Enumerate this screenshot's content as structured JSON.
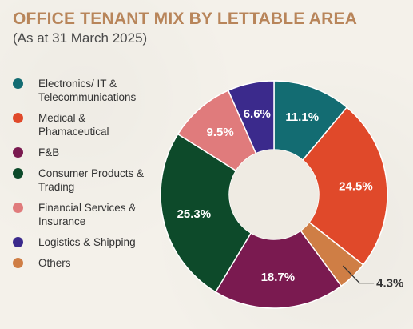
{
  "chart_data": {
    "type": "pie",
    "title": "OFFICE TENANT MIX BY LETTABLE AREA",
    "subtitle": "(As at 31 March 2025)",
    "categories": [
      "Electronics/ IT & Telecommunications",
      "Medical & Phamaceutical",
      "F&B",
      "Consumer Products & Trading",
      "Financial Services & Insurance",
      "Logistics & Shipping",
      "Others"
    ],
    "legend_labels": [
      [
        "Electronics/ IT &",
        "Telecommunications"
      ],
      [
        "Medical &",
        "Phamaceutical"
      ],
      [
        "F&B"
      ],
      [
        "Consumer Products &",
        "Trading"
      ],
      [
        "Financial Services &",
        "Insurance"
      ],
      [
        "Logistics & Shipping"
      ],
      [
        "Others"
      ]
    ],
    "slice_order": [
      "Electronics/ IT & Telecommunications",
      "Medical & Phamaceutical",
      "Others",
      "F&B",
      "Consumer Products & Trading",
      "Financial Services & Insurance",
      "Logistics & Shipping"
    ],
    "slice_values": [
      11.1,
      24.5,
      4.3,
      18.7,
      25.3,
      9.5,
      6.6
    ],
    "slice_labels": [
      "11.1%",
      "24.5%",
      "4.3%",
      "18.7%",
      "25.3%",
      "9.5%",
      "6.6%"
    ],
    "colors": {
      "Electronics/ IT & Telecommunications": "#136c72",
      "Medical & Phamaceutical": "#e0492a",
      "F&B": "#7a1a50",
      "Consumer Products & Trading": "#0d4a2a",
      "Financial Services & Insurance": "#e07b7c",
      "Logistics & Shipping": "#3b2a8c",
      "Others": "#cf7e45"
    },
    "donut": true,
    "legend_position": "left"
  }
}
